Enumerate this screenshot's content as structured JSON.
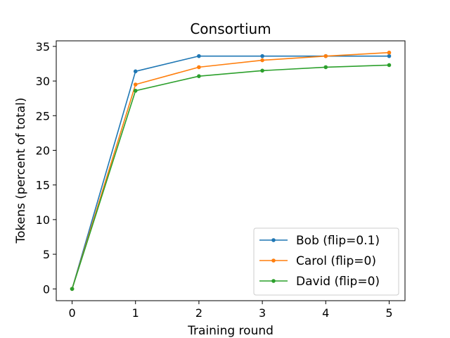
{
  "chart_data": {
    "type": "line",
    "title": "Consortium",
    "xlabel": "Training round",
    "ylabel": "Tokens (percent of total)",
    "x": [
      0,
      1,
      2,
      3,
      4,
      5
    ],
    "xlim": [
      -0.25,
      5.25
    ],
    "ylim": [
      -1.7,
      35.8
    ],
    "xticks": [
      0,
      1,
      2,
      3,
      4,
      5
    ],
    "yticks": [
      0,
      5,
      10,
      15,
      20,
      25,
      30,
      35
    ],
    "grid": false,
    "legend_position": "lower-right",
    "series": [
      {
        "name": "Bob (flip=0.1)",
        "color": "#1f77b4",
        "values": [
          0.0,
          31.4,
          33.6,
          33.6,
          33.6,
          33.6
        ]
      },
      {
        "name": "Carol (flip=0)",
        "color": "#ff7f0e",
        "values": [
          0.0,
          29.5,
          32.0,
          33.0,
          33.6,
          34.1
        ]
      },
      {
        "name": "David (flip=0)",
        "color": "#2ca02c",
        "values": [
          0.0,
          28.6,
          30.7,
          31.5,
          32.0,
          32.3
        ]
      }
    ]
  }
}
